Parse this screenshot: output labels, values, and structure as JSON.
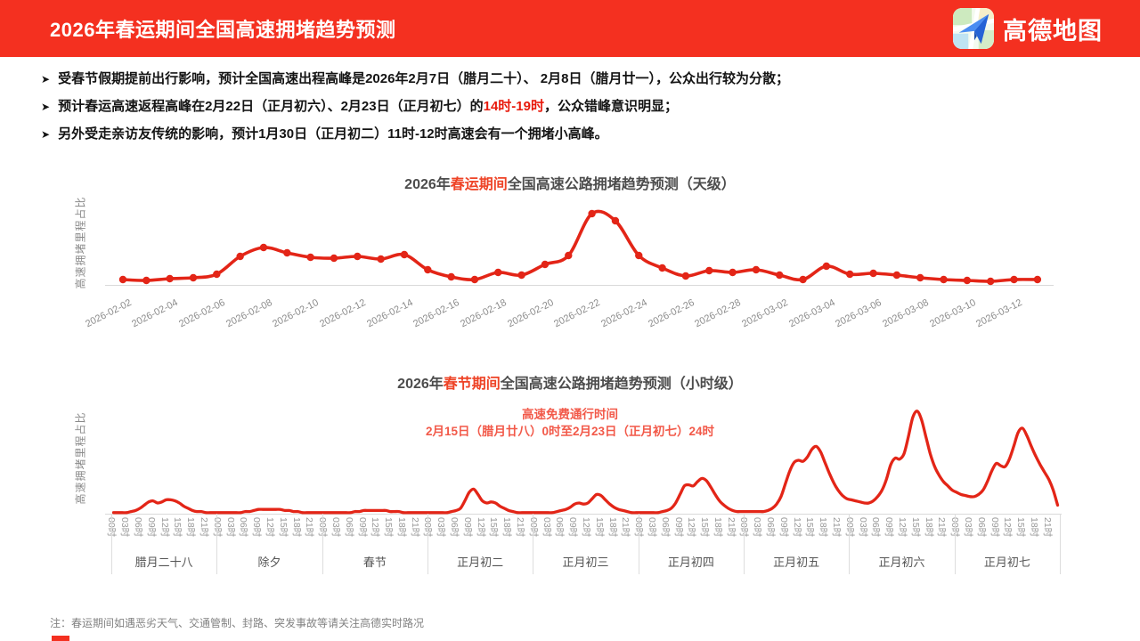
{
  "header": {
    "title": "2026年春运期间全国高速拥堵趋势预测",
    "brand": "高德地图"
  },
  "colors": {
    "header_bg": "#f43020",
    "line_red": "#e32517",
    "title_highlight": "#ee4326",
    "annotation_red": "#f25949",
    "bullet_highlight": "#e81a0c",
    "axis_gray": "#d9d9d9",
    "logo_plane_blue": "#3b82f1",
    "logo_plane_dark": "#2059c8"
  },
  "bullets": {
    "b1": {
      "text": "受春节假期提前出行影响，预计全国高速出程高峰是2026年2月7日（腊月二十）、 2月8日（腊月廿一），公众出行较为分散；"
    },
    "b2": {
      "pre": "预计春运高速返程高峰在2月22日（正月初六）、2月23日（正月初七）的",
      "highlight": "14时-19时",
      "post": "，公众错峰意识明显；"
    },
    "b3": {
      "text": "另外受走亲访友传统的影响，预计1月30日（正月初二）11时-12时高速会有一个拥堵小高峰。"
    }
  },
  "chart_data": [
    {
      "type": "line",
      "title_pre": "2026年",
      "title_highlight": "春运期间",
      "title_post": "全国高速公路拥堵趋势预测（天级）",
      "ylabel": "高速拥堵里程占比",
      "xlabel": "",
      "tick_every": 2,
      "show_points": true,
      "grid": false,
      "ylim": [
        0,
        90
      ],
      "x": [
        "2026-02-02",
        "2026-02-03",
        "2026-02-04",
        "2026-02-05",
        "2026-02-06",
        "2026-02-07",
        "2026-02-08",
        "2026-02-09",
        "2026-02-10",
        "2026-02-11",
        "2026-02-12",
        "2026-02-13",
        "2026-02-14",
        "2026-02-15",
        "2026-02-16",
        "2026-02-17",
        "2026-02-18",
        "2026-02-19",
        "2026-02-20",
        "2026-02-21",
        "2026-02-22",
        "2026-02-23",
        "2026-02-24",
        "2026-02-25",
        "2026-02-26",
        "2026-02-27",
        "2026-02-28",
        "2026-03-01",
        "2026-03-02",
        "2026-03-03",
        "2026-03-04",
        "2026-03-05",
        "2026-03-06",
        "2026-03-07",
        "2026-03-08",
        "2026-03-09",
        "2026-03-10",
        "2026-03-11",
        "2026-03-12",
        "2026-03-13"
      ],
      "values": [
        6,
        5,
        7,
        8,
        12,
        32,
        42,
        36,
        31,
        30,
        32,
        29,
        34,
        17,
        9,
        6,
        14,
        11,
        23,
        33,
        80,
        72,
        33,
        19,
        10,
        16,
        14,
        17,
        11,
        6,
        21,
        12,
        13,
        11,
        8,
        6,
        5,
        4,
        6,
        6
      ]
    },
    {
      "type": "line",
      "title_pre": "2026年",
      "title_highlight": "春节期间",
      "title_post": "全国高速公路拥堵趋势预测（小时级）",
      "ylabel": "高速拥堵里程占比",
      "annotation": [
        "高速免费通行时间",
        "2月15日（腊月廿八）0时至2月23日（正月初七）24时"
      ],
      "days": [
        "腊月二十八",
        "除夕",
        "春节",
        "正月初二",
        "正月初三",
        "正月初四",
        "正月初五",
        "正月初六",
        "正月初七"
      ],
      "hour_ticks": [
        "00时",
        "03时",
        "06时",
        "09时",
        "12时",
        "15时",
        "18时",
        "21时"
      ],
      "grid": false,
      "ylim": [
        0,
        100
      ],
      "series": [
        {
          "name": "高速拥堵里程占比",
          "hourly_by_day": [
            [
              1,
              1,
              1,
              1,
              2,
              3,
              5,
              8,
              11,
              12,
              10,
              11,
              13,
              13,
              12,
              10,
              7,
              5,
              3,
              2,
              2,
              1,
              1,
              1
            ],
            [
              1,
              1,
              1,
              1,
              1,
              1,
              2,
              2,
              3,
              4,
              4,
              4,
              4,
              4,
              4,
              3,
              3,
              2,
              2,
              1,
              1,
              1,
              1,
              1
            ],
            [
              1,
              1,
              1,
              1,
              1,
              1,
              1,
              2,
              2,
              3,
              3,
              3,
              3,
              3,
              3,
              2,
              2,
              2,
              1,
              1,
              1,
              1,
              1,
              1
            ],
            [
              1,
              1,
              1,
              1,
              1,
              2,
              3,
              5,
              12,
              20,
              23,
              18,
              12,
              10,
              11,
              10,
              7,
              5,
              3,
              2,
              1,
              1,
              1,
              1
            ],
            [
              1,
              1,
              1,
              1,
              1,
              2,
              3,
              4,
              6,
              9,
              10,
              9,
              10,
              14,
              18,
              17,
              13,
              9,
              6,
              4,
              3,
              2,
              1,
              1
            ],
            [
              1,
              1,
              1,
              1,
              1,
              2,
              3,
              5,
              10,
              18,
              26,
              27,
              26,
              30,
              33,
              31,
              25,
              18,
              12,
              8,
              5,
              3,
              2,
              2
            ],
            [
              2,
              2,
              2,
              2,
              2,
              3,
              5,
              9,
              16,
              28,
              40,
              48,
              50,
              49,
              53,
              60,
              63,
              58,
              48,
              38,
              29,
              22,
              17,
              14
            ],
            [
              13,
              12,
              11,
              10,
              10,
              12,
              16,
              22,
              32,
              46,
              52,
              51,
              56,
              72,
              90,
              96,
              88,
              72,
              56,
              44,
              36,
              30,
              26,
              22
            ],
            [
              20,
              18,
              17,
              16,
              16,
              18,
              22,
              30,
              40,
              47,
              45,
              44,
              51,
              63,
              76,
              80,
              73,
              63,
              54,
              46,
              39,
              32,
              22,
              8
            ]
          ]
        }
      ]
    }
  ],
  "footer": {
    "note": "注：春运期间如遇恶劣天气、交通管制、封路、突发事故等请关注高德实时路况"
  }
}
